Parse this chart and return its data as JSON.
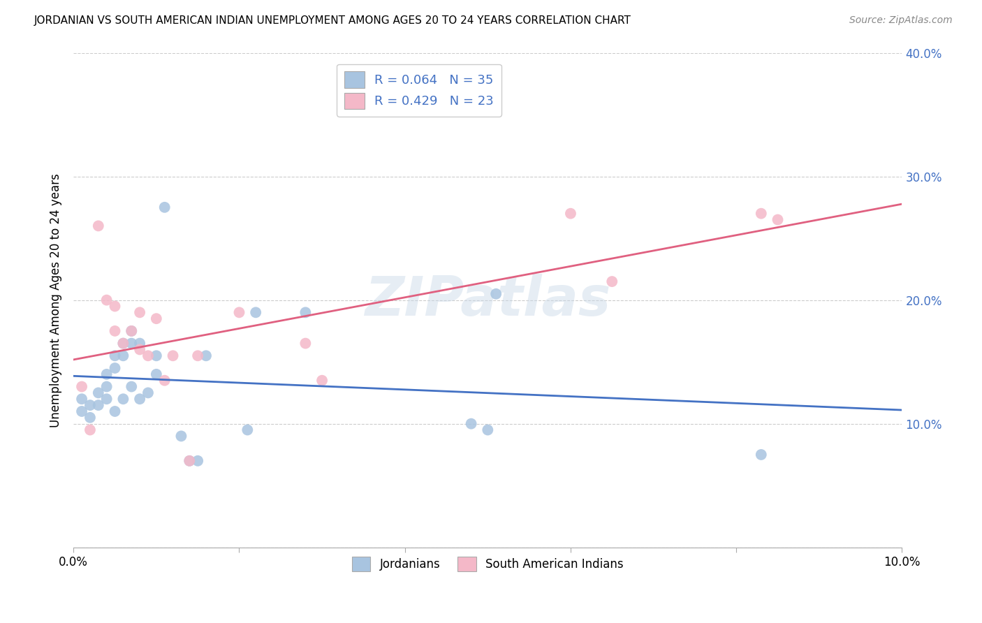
{
  "title": "JORDANIAN VS SOUTH AMERICAN INDIAN UNEMPLOYMENT AMONG AGES 20 TO 24 YEARS CORRELATION CHART",
  "source": "Source: ZipAtlas.com",
  "ylabel": "Unemployment Among Ages 20 to 24 years",
  "xlim": [
    0.0,
    0.1
  ],
  "ylim": [
    0.0,
    0.4
  ],
  "xticks": [
    0.0,
    0.02,
    0.04,
    0.06,
    0.08,
    0.1
  ],
  "yticks": [
    0.0,
    0.1,
    0.2,
    0.3,
    0.4
  ],
  "blue_label": "Jordanians",
  "pink_label": "South American Indians",
  "blue_r": "0.064",
  "blue_n": "35",
  "pink_r": "0.429",
  "pink_n": "23",
  "blue_color": "#a8c4e0",
  "pink_color": "#f4b8c8",
  "blue_line_color": "#4472c4",
  "pink_line_color": "#e06080",
  "legend_text_color": "#4472c4",
  "watermark": "ZIPatlas",
  "background_color": "#ffffff",
  "grid_color": "#cccccc",
  "blue_x": [
    0.001,
    0.001,
    0.002,
    0.002,
    0.003,
    0.003,
    0.004,
    0.004,
    0.004,
    0.005,
    0.005,
    0.005,
    0.006,
    0.006,
    0.006,
    0.007,
    0.007,
    0.007,
    0.008,
    0.008,
    0.009,
    0.01,
    0.01,
    0.011,
    0.013,
    0.014,
    0.015,
    0.016,
    0.021,
    0.022,
    0.028,
    0.048,
    0.05,
    0.051,
    0.083
  ],
  "blue_y": [
    0.12,
    0.11,
    0.115,
    0.105,
    0.125,
    0.115,
    0.13,
    0.14,
    0.12,
    0.145,
    0.155,
    0.11,
    0.155,
    0.165,
    0.12,
    0.175,
    0.165,
    0.13,
    0.165,
    0.12,
    0.125,
    0.155,
    0.14,
    0.275,
    0.09,
    0.07,
    0.07,
    0.155,
    0.095,
    0.19,
    0.19,
    0.1,
    0.095,
    0.205,
    0.075
  ],
  "pink_x": [
    0.001,
    0.002,
    0.003,
    0.004,
    0.005,
    0.005,
    0.006,
    0.007,
    0.008,
    0.008,
    0.009,
    0.01,
    0.011,
    0.012,
    0.014,
    0.015,
    0.02,
    0.028,
    0.03,
    0.06,
    0.065,
    0.083,
    0.085
  ],
  "pink_y": [
    0.13,
    0.095,
    0.26,
    0.2,
    0.195,
    0.175,
    0.165,
    0.175,
    0.16,
    0.19,
    0.155,
    0.185,
    0.135,
    0.155,
    0.07,
    0.155,
    0.19,
    0.165,
    0.135,
    0.27,
    0.215,
    0.27,
    0.265
  ]
}
